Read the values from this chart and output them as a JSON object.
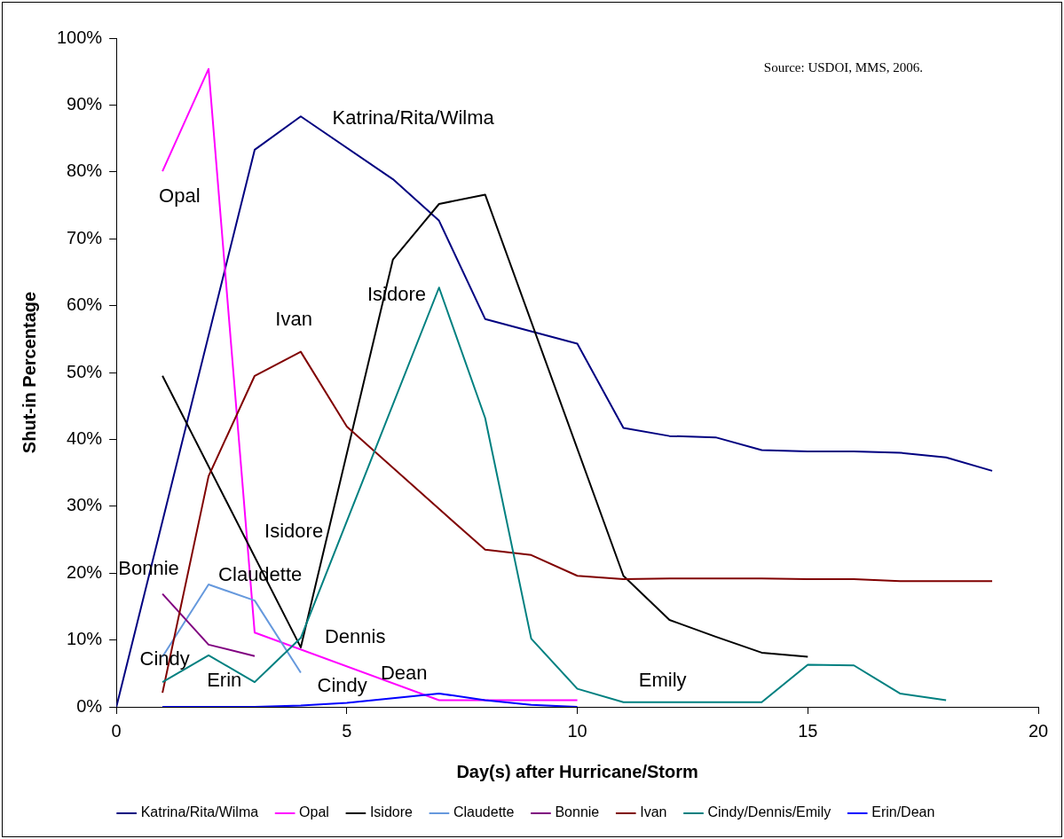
{
  "chart_data": {
    "type": "line",
    "xlabel": "Day(s) after Hurricane/Storm",
    "ylabel": "Shut-in Percentage",
    "xlim": [
      0,
      20
    ],
    "xticks": [
      0,
      5,
      10,
      15,
      20
    ],
    "ylim": [
      0,
      100
    ],
    "yticks": [
      {
        "value": 0,
        "label": "0%"
      },
      {
        "value": 10,
        "label": "10%"
      },
      {
        "value": 20,
        "label": "20%"
      },
      {
        "value": 30,
        "label": "30%"
      },
      {
        "value": 40,
        "label": "40%"
      },
      {
        "value": 50,
        "label": "50%"
      },
      {
        "value": 60,
        "label": "60%"
      },
      {
        "value": 70,
        "label": "70%"
      },
      {
        "value": 80,
        "label": "80%"
      },
      {
        "value": 90,
        "label": "90%"
      },
      {
        "value": 100,
        "label": "100%"
      }
    ],
    "grid": false,
    "legend": "bottom",
    "marker": "none",
    "line_style": "solid",
    "series": [
      {
        "name": "Katrina/Rita/Wilma",
        "color": "#000080",
        "x": [
          0,
          3,
          4,
          6,
          7,
          8,
          10,
          11,
          12,
          13,
          14,
          15,
          16,
          17,
          18,
          19
        ],
        "values": [
          0,
          83.3,
          88.3,
          78.9,
          72.7,
          58.0,
          54.3,
          41.7,
          40.5,
          40.3,
          38.4,
          38.2,
          38.2,
          38.0,
          37.3,
          35.3
        ]
      },
      {
        "name": "Opal",
        "color": "#ff00ff",
        "x": [
          1,
          2,
          3,
          7,
          10
        ],
        "values": [
          80.1,
          95.4,
          11.1,
          1.0,
          1.0
        ]
      },
      {
        "name": "Isidore",
        "color": "#000000",
        "x": [
          1,
          4,
          6,
          7,
          8,
          11,
          12,
          13,
          14,
          15
        ],
        "values": [
          49.5,
          8.9,
          66.9,
          75.2,
          76.6,
          19.6,
          13.0,
          10.5,
          8.1,
          7.5
        ]
      },
      {
        "name": "Claudette",
        "color": "#6699dd",
        "x": [
          1,
          2,
          3,
          4
        ],
        "values": [
          7.5,
          18.3,
          15.9,
          5.1
        ]
      },
      {
        "name": "Bonnie",
        "color": "#800080",
        "x": [
          1,
          2,
          3
        ],
        "values": [
          16.9,
          9.3,
          7.6
        ]
      },
      {
        "name": "Ivan",
        "color": "#800000",
        "x": [
          1,
          2,
          3,
          4,
          5,
          7,
          8,
          9,
          10,
          11,
          12,
          13,
          14,
          15,
          16,
          17,
          18,
          19
        ],
        "values": [
          2.1,
          34.5,
          49.5,
          53.1,
          41.9,
          29.6,
          23.5,
          22.7,
          19.6,
          19.1,
          19.2,
          19.2,
          19.2,
          19.1,
          19.1,
          18.8,
          18.8,
          18.8
        ]
      },
      {
        "name": "Cindy/Dennis/Emily",
        "color": "#008080",
        "x": [
          1,
          2,
          3,
          4,
          7,
          8,
          9,
          10,
          11,
          12,
          13,
          14,
          15,
          16,
          17,
          18
        ],
        "values": [
          3.7,
          7.7,
          3.7,
          10.3,
          62.7,
          43.2,
          10.2,
          2.7,
          0.7,
          0.7,
          0.7,
          0.7,
          6.3,
          6.2,
          2.0,
          1.0
        ]
      },
      {
        "name": "Erin/Dean",
        "color": "#0000ff",
        "x": [
          1,
          3,
          4,
          5,
          6,
          7,
          8,
          9,
          10
        ],
        "values": [
          0,
          0,
          0.2,
          0.6,
          1.3,
          2.0,
          1.0,
          0.3,
          0
        ]
      }
    ],
    "annotations": [
      "Source: USDOI, MMS, 2006.",
      "Opal",
      "Katrina/Rita/Wilma",
      "Ivan",
      "Isidore",
      "Isidore",
      "Bonnie",
      "Claudette",
      "Cindy",
      "Erin",
      "Dennis",
      "Cindy",
      "Dean",
      "Emily"
    ]
  }
}
